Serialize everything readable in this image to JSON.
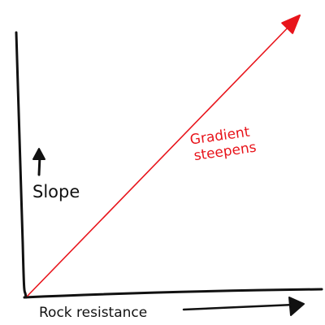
{
  "chart_data": {
    "type": "line",
    "title": "",
    "xlabel": "Rock resistance",
    "ylabel": "Slope",
    "grid": false,
    "legend": "none",
    "axis_ticks": "none",
    "series": [
      {
        "values": [
          {
            "x": 0,
            "y": 0
          },
          {
            "x": 1,
            "y": 1
          }
        ],
        "color": "#e8141b",
        "arrowhead": true
      }
    ],
    "annotations": [
      {
        "text_line1": "Gradient",
        "text_line2": "steepens",
        "color": "#e8141b"
      }
    ],
    "axis_color": "#111111",
    "label_color": "#111111",
    "icons": {
      "y_arrow": "arrow-up-icon",
      "x_arrow": "arrow-right-icon"
    }
  }
}
